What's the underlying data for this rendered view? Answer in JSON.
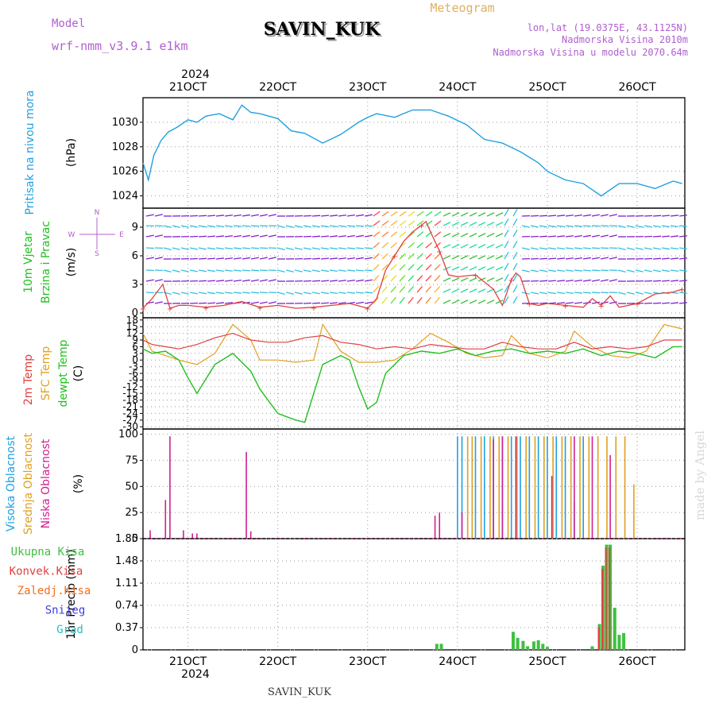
{
  "header": {
    "model_label": "Model",
    "model_name": "wrf-nmm_v3.9.1 e1km",
    "station": "SAVIN_KUK",
    "meteogram": "Meteogram",
    "lonlat": "lon,lat (19.0375E, 43.1125N)",
    "elevation": "Nadmorska Visina 2010m",
    "model_elevation": "Nadmorska Visina u modelu 2070.64m",
    "year": "2024",
    "footer_station": "SAVIN_KUK",
    "watermark": "made by Angel"
  },
  "colors": {
    "pressure": "#20a0e0",
    "temp2m": "#e04040",
    "sfc": "#e0a020",
    "dew": "#20c020",
    "high": "#20a0e0",
    "mid": "#e0a020",
    "low": "#d02090",
    "total": "#40c040",
    "conv": "#e04040",
    "wind_label": "#20c020",
    "purple": "#b060d0"
  },
  "chart_data": [
    {
      "type": "line",
      "panel": "pressure",
      "ylabel_a": "Pritisak na nivou mora",
      "ylabel_b": "(hPa)",
      "ylim": [
        1023,
        1032
      ],
      "yticks": [
        "1024",
        "1026",
        "1028",
        "1030"
      ],
      "x_ticks": [
        "21OCT",
        "22OCT",
        "23OCT",
        "24OCT",
        "25OCT",
        "26OCT"
      ],
      "series": [
        {
          "name": "Pritisak na nivou mora",
          "x": [
            20.5,
            20.56,
            20.62,
            20.7,
            20.78,
            20.88,
            21.0,
            21.1,
            21.2,
            21.35,
            21.5,
            21.6,
            21.7,
            21.8,
            22.0,
            22.15,
            22.3,
            22.5,
            22.7,
            22.9,
            23.0,
            23.1,
            23.3,
            23.5,
            23.7,
            23.9,
            24.1,
            24.3,
            24.5,
            24.7,
            24.9,
            25.0,
            25.2,
            25.4,
            25.6,
            25.8,
            26.0,
            26.2,
            26.4,
            26.5
          ],
          "y": [
            1026.7,
            1025.3,
            1027.3,
            1028.5,
            1029.2,
            1029.6,
            1030.2,
            1030.0,
            1030.5,
            1030.7,
            1030.2,
            1031.4,
            1030.8,
            1030.7,
            1030.3,
            1029.3,
            1029.1,
            1028.3,
            1029.0,
            1030.0,
            1030.4,
            1030.7,
            1030.4,
            1031.0,
            1031.0,
            1030.5,
            1029.8,
            1028.6,
            1028.3,
            1027.6,
            1026.7,
            1026.0,
            1025.3,
            1025.0,
            1024.0,
            1025.0,
            1025.0,
            1024.6,
            1025.2,
            1025.0
          ]
        }
      ]
    },
    {
      "type": "line",
      "panel": "wind",
      "ylabel_a": "10m Vjetar",
      "ylabel_b": "Brzina i Pravac",
      "ylabel_c": "(m/s)",
      "ylim": [
        -0.5,
        11
      ],
      "yticks": [
        "0",
        "3",
        "6",
        "9"
      ],
      "compass": [
        "N",
        "E",
        "S",
        "W"
      ],
      "series": [
        {
          "name": "10m Vjetar Brzina",
          "x": [
            20.5,
            20.6,
            20.72,
            20.8,
            20.9,
            21.0,
            21.2,
            21.4,
            21.6,
            21.8,
            22.0,
            22.2,
            22.4,
            22.6,
            22.8,
            23.0,
            23.1,
            23.2,
            23.3,
            23.4,
            23.5,
            23.6,
            23.65,
            23.7,
            23.8,
            23.9,
            24.0,
            24.2,
            24.4,
            24.5,
            24.6,
            24.65,
            24.7,
            24.8,
            24.9,
            25.0,
            25.2,
            25.4,
            25.5,
            25.6,
            25.7,
            25.8,
            26.0,
            26.2,
            26.4,
            26.5
          ],
          "y": [
            0.5,
            1.5,
            3.0,
            0.5,
            0.8,
            0.8,
            0.6,
            0.8,
            1.2,
            0.6,
            0.8,
            0.5,
            0.6,
            0.8,
            1.0,
            0.5,
            1.5,
            4.5,
            6.0,
            7.5,
            8.5,
            9.2,
            9.6,
            8.5,
            6.5,
            4.0,
            3.8,
            4.0,
            2.5,
            0.8,
            3.5,
            4.2,
            3.8,
            1.0,
            0.8,
            1.0,
            0.8,
            0.6,
            1.5,
            0.8,
            1.8,
            0.6,
            1.0,
            2.0,
            2.2,
            2.5
          ]
        }
      ]
    },
    {
      "type": "line",
      "panel": "temperature",
      "ylabel_a": "2m Temp",
      "ylabel_b": "SFC Temp",
      "ylabel_c": "dewpt Temp",
      "ylabel_d": "(C)",
      "ylim": [
        -31,
        19
      ],
      "yticks": [
        "18",
        "15",
        "12",
        "9",
        "6",
        "3",
        "0",
        "-3",
        "-6",
        "-9",
        "-12",
        "-15",
        "-18",
        "-21",
        "-24",
        "-27",
        "-30"
      ],
      "series": [
        {
          "name": "2m Temp",
          "x": [
            20.5,
            20.6,
            20.75,
            20.9,
            21.1,
            21.3,
            21.5,
            21.7,
            21.9,
            22.1,
            22.3,
            22.5,
            22.7,
            22.9,
            23.1,
            23.3,
            23.5,
            23.7,
            23.9,
            24.1,
            24.3,
            24.5,
            24.7,
            24.9,
            25.1,
            25.3,
            25.5,
            25.7,
            25.9,
            26.1,
            26.3,
            26.5
          ],
          "y": [
            9,
            7,
            6,
            5,
            7,
            10,
            12,
            9,
            8,
            8,
            10,
            11,
            8,
            7,
            5,
            6,
            5,
            7,
            6,
            5,
            5,
            8,
            6,
            5,
            5,
            8,
            5,
            6,
            5,
            6,
            9,
            9
          ]
        },
        {
          "name": "SFC Temp",
          "x": [
            20.5,
            20.6,
            20.75,
            20.9,
            21.1,
            21.3,
            21.5,
            21.7,
            21.8,
            22.0,
            22.2,
            22.4,
            22.5,
            22.7,
            22.9,
            23.1,
            23.3,
            23.5,
            23.7,
            23.9,
            24.1,
            24.3,
            24.5,
            24.6,
            24.8,
            25.0,
            25.2,
            25.3,
            25.5,
            25.7,
            25.9,
            26.1,
            26.3,
            26.5
          ],
          "y": [
            12,
            4,
            2,
            0,
            -2,
            3,
            16,
            9,
            0,
            0,
            -1,
            0,
            16,
            4,
            -1,
            -1,
            0,
            5,
            12,
            8,
            3,
            1,
            2,
            11,
            3,
            1,
            4,
            13,
            6,
            2,
            1,
            4,
            16,
            14
          ]
        },
        {
          "name": "dewpt Temp",
          "x": [
            20.5,
            20.6,
            20.75,
            20.9,
            21.0,
            21.1,
            21.3,
            21.5,
            21.7,
            21.8,
            22.0,
            22.2,
            22.3,
            22.5,
            22.7,
            22.8,
            22.9,
            23.0,
            23.1,
            23.2,
            23.4,
            23.6,
            23.8,
            24.0,
            24.2,
            24.4,
            24.6,
            24.8,
            25.0,
            25.2,
            25.4,
            25.6,
            25.8,
            26.0,
            26.2,
            26.4,
            26.5
          ],
          "y": [
            5,
            3,
            4,
            0,
            -8,
            -15,
            -2,
            3,
            -5,
            -13,
            -24,
            -27,
            -28,
            -2,
            2,
            0,
            -12,
            -22,
            -19,
            -6,
            2,
            4,
            3,
            5,
            2,
            4,
            5,
            3,
            4,
            3,
            5,
            2,
            4,
            3,
            1,
            6,
            6
          ]
        }
      ]
    },
    {
      "type": "bar",
      "panel": "cloud",
      "ylabel_a": "Visoka Oblacnost",
      "ylabel_b": "Srednja Oblacnost",
      "ylabel_c": "Niska Oblacnost",
      "ylabel_d": "(%)",
      "ylim": [
        0,
        105
      ],
      "yticks": [
        "0",
        "25",
        "50",
        "75",
        "100"
      ],
      "series": [
        {
          "name": "Niska Oblacnost",
          "x": [
            20.58,
            20.75,
            20.8,
            20.95,
            21.05,
            21.1,
            21.65,
            21.7,
            23.75,
            23.8,
            24.05,
            24.4,
            24.5,
            24.65,
            25.05,
            25.3,
            25.5,
            25.7
          ],
          "y": [
            8,
            37,
            98,
            8,
            5,
            5,
            83,
            7,
            22,
            25,
            25,
            95,
            98,
            98,
            60,
            98,
            98,
            80
          ]
        },
        {
          "name": "Srednja Oblacnost",
          "x": [
            24.1,
            24.15,
            24.25,
            24.35,
            24.45,
            24.55,
            24.65,
            24.75,
            24.85,
            24.95,
            25.05,
            25.15,
            25.25,
            25.35,
            25.45,
            25.55,
            25.65,
            25.75,
            25.85,
            25.95
          ],
          "y": [
            98,
            98,
            98,
            98,
            98,
            98,
            98,
            98,
            98,
            98,
            98,
            98,
            98,
            98,
            98,
            98,
            98,
            98,
            98,
            52
          ]
        },
        {
          "name": "Visoka Oblacnost",
          "x": [
            24.0,
            24.05,
            24.2,
            24.3,
            24.4,
            24.5,
            24.6,
            24.7,
            24.8,
            24.9,
            25.0,
            25.1,
            25.2,
            25.3,
            25.4
          ],
          "y": [
            98,
            98,
            98,
            98,
            98,
            98,
            98,
            98,
            98,
            98,
            98,
            98,
            98,
            35,
            98
          ]
        }
      ]
    },
    {
      "type": "bar",
      "panel": "precip",
      "ylabel_a": "1hr Precip",
      "ylabel_b": "(mm)",
      "ylim": [
        0,
        1.85
      ],
      "yticks": [
        "0",
        "0.37",
        "0.74",
        "1.11",
        "1.48",
        "1.85"
      ],
      "legend": [
        "Ukupna Kisa",
        "Konvek.Kisa",
        "Zaledj.Kisa",
        "Snijeg",
        "Grad"
      ],
      "series": [
        {
          "name": "Ukupna Kisa",
          "x": [
            23.77,
            23.82,
            24.62,
            24.67,
            24.73,
            24.78,
            24.85,
            24.9,
            24.95,
            25.0,
            25.5,
            25.58,
            25.62,
            25.66,
            25.7,
            25.75,
            25.8,
            25.85
          ],
          "y": [
            0.1,
            0.1,
            0.3,
            0.2,
            0.15,
            0.06,
            0.14,
            0.16,
            0.1,
            0.05,
            0.06,
            0.43,
            1.4,
            1.75,
            1.75,
            0.7,
            0.25,
            0.28
          ]
        },
        {
          "name": "Konvek.Kisa",
          "x": [
            25.58,
            25.62,
            25.66,
            25.7
          ],
          "y": [
            0.38,
            1.35,
            1.7,
            1.7
          ]
        }
      ]
    }
  ]
}
